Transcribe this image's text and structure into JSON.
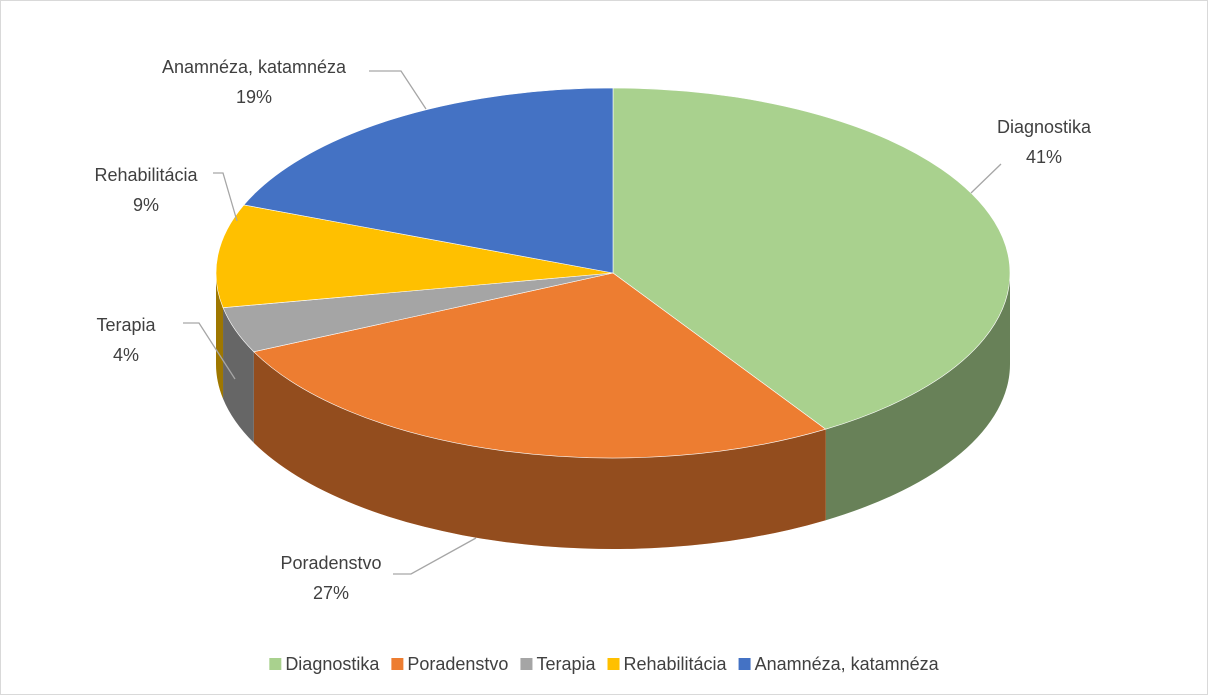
{
  "chart_data": {
    "type": "pie",
    "categories": [
      "Diagnostika",
      "Poradenstvo",
      "Terapia",
      "Rehabilitácia",
      "Anamnéza, katamnéza"
    ],
    "values": [
      41,
      27,
      4,
      9,
      19
    ],
    "value_labels": [
      "41%",
      "27%",
      "4%",
      "9%",
      "19%"
    ],
    "colors": [
      "#a9d18e",
      "#ed7d31",
      "#a5a5a5",
      "#ffc000",
      "#4472c4"
    ],
    "legend": "bottom"
  }
}
